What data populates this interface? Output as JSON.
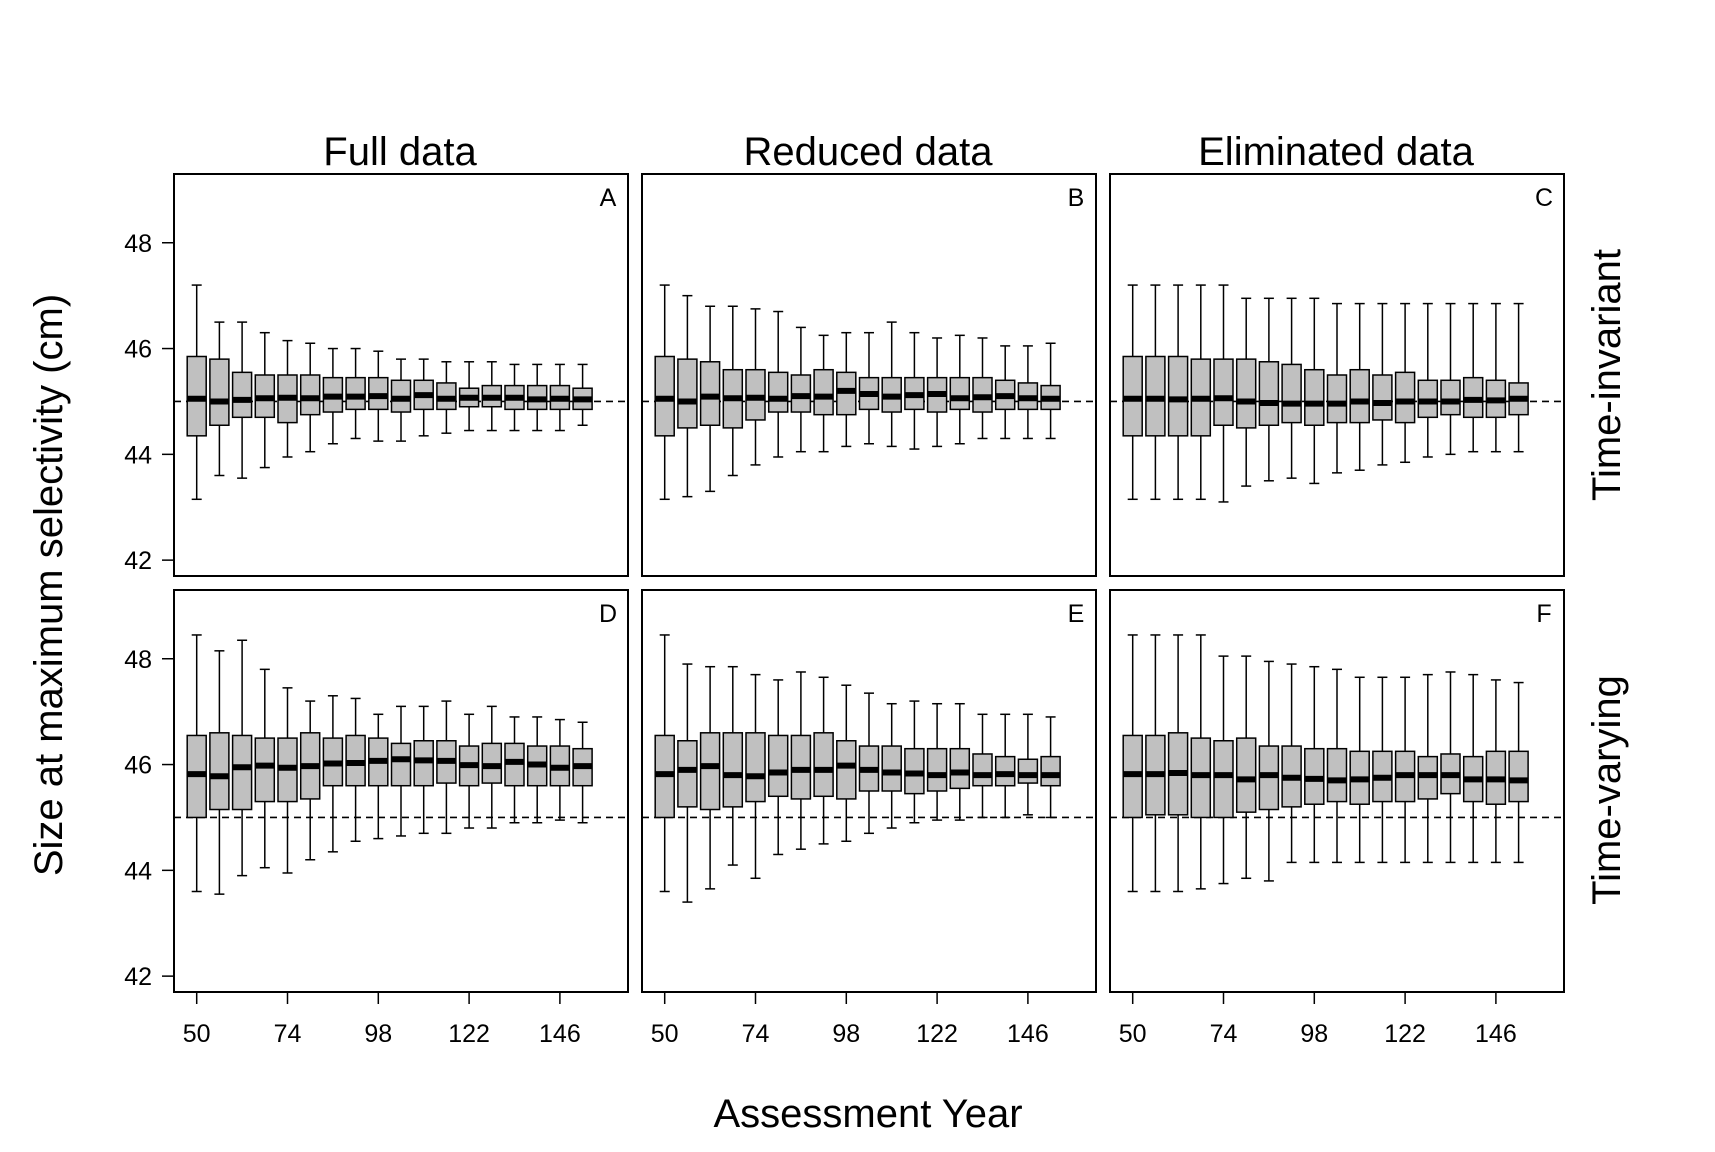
{
  "figure": {
    "col_titles": [
      "Full data",
      "Reduced data",
      "Eliminated data"
    ],
    "row_titles": [
      "Time-invariant",
      "Time-varying"
    ],
    "ylabel": "Size at maximum selectivity (cm)",
    "xlabel": "Assessment Year",
    "colors": {
      "box_fill": "#c0c0c0",
      "stroke": "#000000"
    }
  },
  "chart_data": [
    {
      "type": "boxplot",
      "panel": "A",
      "column": "Full data",
      "row": "Time-invariant",
      "x_ticks": [
        50,
        74,
        98,
        122,
        146
      ],
      "y_ticks": [
        42,
        44,
        46,
        48
      ],
      "ylim": [
        41.7,
        49.3
      ],
      "reference_line": 45,
      "x": [
        50,
        56,
        62,
        68,
        74,
        80,
        86,
        92,
        98,
        104,
        110,
        116,
        122,
        128,
        134,
        140,
        146,
        152
      ],
      "whisker_low": [
        43.15,
        43.6,
        43.55,
        43.75,
        43.95,
        44.05,
        44.2,
        44.3,
        44.25,
        44.25,
        44.35,
        44.4,
        44.45,
        44.45,
        44.45,
        44.45,
        44.45,
        44.55
      ],
      "q1": [
        44.35,
        44.55,
        44.7,
        44.7,
        44.6,
        44.75,
        44.8,
        44.85,
        44.85,
        44.8,
        44.85,
        44.85,
        44.9,
        44.9,
        44.85,
        44.85,
        44.85,
        44.85
      ],
      "median": [
        45.05,
        45.0,
        45.03,
        45.06,
        45.07,
        45.06,
        45.09,
        45.09,
        45.1,
        45.05,
        45.12,
        45.05,
        45.07,
        45.07,
        45.07,
        45.04,
        45.05,
        45.04
      ],
      "q3": [
        45.85,
        45.8,
        45.55,
        45.5,
        45.5,
        45.5,
        45.45,
        45.45,
        45.45,
        45.4,
        45.4,
        45.35,
        45.25,
        45.3,
        45.3,
        45.3,
        45.3,
        45.25
      ],
      "whisker_high": [
        47.2,
        46.5,
        46.5,
        46.3,
        46.15,
        46.1,
        46.0,
        46.0,
        45.95,
        45.8,
        45.8,
        45.75,
        45.75,
        45.75,
        45.7,
        45.7,
        45.7,
        45.7
      ]
    },
    {
      "type": "boxplot",
      "panel": "B",
      "column": "Reduced data",
      "row": "Time-invariant",
      "x_ticks": [
        50,
        74,
        98,
        122,
        146
      ],
      "y_ticks": [
        42,
        44,
        46,
        48
      ],
      "ylim": [
        41.7,
        49.3
      ],
      "reference_line": 45,
      "x": [
        50,
        56,
        62,
        68,
        74,
        80,
        86,
        92,
        98,
        104,
        110,
        116,
        122,
        128,
        134,
        140,
        146,
        152
      ],
      "whisker_low": [
        43.15,
        43.2,
        43.3,
        43.6,
        43.8,
        43.95,
        44.05,
        44.05,
        44.15,
        44.2,
        44.15,
        44.1,
        44.15,
        44.2,
        44.3,
        44.3,
        44.3,
        44.3
      ],
      "q1": [
        44.35,
        44.5,
        44.55,
        44.5,
        44.65,
        44.8,
        44.8,
        44.75,
        44.75,
        44.85,
        44.8,
        44.85,
        44.8,
        44.85,
        44.8,
        44.85,
        44.85,
        44.85
      ],
      "median": [
        45.05,
        45.0,
        45.09,
        45.06,
        45.07,
        45.05,
        45.1,
        45.09,
        45.2,
        45.14,
        45.09,
        45.12,
        45.14,
        45.06,
        45.08,
        45.1,
        45.06,
        45.05
      ],
      "q3": [
        45.85,
        45.8,
        45.75,
        45.6,
        45.6,
        45.55,
        45.5,
        45.6,
        45.55,
        45.45,
        45.45,
        45.45,
        45.45,
        45.45,
        45.45,
        45.4,
        45.35,
        45.3
      ],
      "whisker_high": [
        47.2,
        47.0,
        46.8,
        46.8,
        46.75,
        46.7,
        46.4,
        46.25,
        46.3,
        46.3,
        46.5,
        46.3,
        46.2,
        46.25,
        46.2,
        46.05,
        46.05,
        46.1
      ]
    },
    {
      "type": "boxplot",
      "panel": "C",
      "column": "Eliminated data",
      "row": "Time-invariant",
      "x_ticks": [
        50,
        74,
        98,
        122,
        146
      ],
      "y_ticks": [
        42,
        44,
        46,
        48
      ],
      "ylim": [
        41.7,
        49.3
      ],
      "reference_line": 45,
      "x": [
        50,
        56,
        62,
        68,
        74,
        80,
        86,
        92,
        98,
        104,
        110,
        116,
        122,
        128,
        134,
        140,
        146,
        152
      ],
      "whisker_low": [
        43.15,
        43.15,
        43.15,
        43.15,
        43.1,
        43.4,
        43.5,
        43.55,
        43.45,
        43.65,
        43.7,
        43.8,
        43.85,
        43.95,
        44.0,
        44.05,
        44.05,
        44.05
      ],
      "q1": [
        44.35,
        44.35,
        44.35,
        44.35,
        44.55,
        44.5,
        44.55,
        44.6,
        44.55,
        44.6,
        44.6,
        44.65,
        44.6,
        44.7,
        44.75,
        44.7,
        44.7,
        44.75
      ],
      "median": [
        45.05,
        45.05,
        45.04,
        45.05,
        45.06,
        45.0,
        44.97,
        44.96,
        44.96,
        44.96,
        45.0,
        44.97,
        45.0,
        45.0,
        45.0,
        45.03,
        45.02,
        45.05
      ],
      "q3": [
        45.85,
        45.85,
        45.85,
        45.8,
        45.8,
        45.8,
        45.75,
        45.7,
        45.6,
        45.5,
        45.6,
        45.5,
        45.55,
        45.4,
        45.4,
        45.45,
        45.4,
        45.35
      ],
      "whisker_high": [
        47.2,
        47.2,
        47.2,
        47.2,
        47.2,
        46.95,
        46.95,
        46.95,
        46.95,
        46.85,
        46.85,
        46.85,
        46.85,
        46.85,
        46.85,
        46.85,
        46.85,
        46.85
      ]
    },
    {
      "type": "boxplot",
      "panel": "D",
      "column": "Full data",
      "row": "Time-varying",
      "x_ticks": [
        50,
        74,
        98,
        122,
        146
      ],
      "y_ticks": [
        42,
        44,
        46,
        48
      ],
      "ylim": [
        41.7,
        49.3
      ],
      "reference_line": 45,
      "x": [
        50,
        56,
        62,
        68,
        74,
        80,
        86,
        92,
        98,
        104,
        110,
        116,
        122,
        128,
        134,
        140,
        146,
        152
      ],
      "whisker_low": [
        43.6,
        43.55,
        43.9,
        44.05,
        43.95,
        44.2,
        44.35,
        44.55,
        44.6,
        44.65,
        44.7,
        44.7,
        44.8,
        44.8,
        44.9,
        44.9,
        44.95,
        44.9
      ],
      "q1": [
        45.0,
        45.15,
        45.15,
        45.3,
        45.3,
        45.35,
        45.6,
        45.6,
        45.6,
        45.6,
        45.6,
        45.65,
        45.6,
        45.65,
        45.6,
        45.6,
        45.6,
        45.6
      ],
      "median": [
        45.82,
        45.78,
        45.95,
        45.98,
        45.94,
        45.97,
        46.02,
        46.03,
        46.07,
        46.1,
        46.08,
        46.07,
        45.99,
        45.97,
        46.05,
        46.0,
        45.94,
        45.97
      ],
      "q3": [
        46.55,
        46.6,
        46.55,
        46.5,
        46.5,
        46.6,
        46.5,
        46.55,
        46.5,
        46.4,
        46.45,
        46.45,
        46.35,
        46.4,
        46.4,
        46.35,
        46.35,
        46.3
      ],
      "whisker_high": [
        48.45,
        48.15,
        48.35,
        47.8,
        47.45,
        47.2,
        47.3,
        47.25,
        46.95,
        47.1,
        47.1,
        47.2,
        46.95,
        47.1,
        46.9,
        46.9,
        46.85,
        46.8
      ]
    },
    {
      "type": "boxplot",
      "panel": "E",
      "column": "Reduced data",
      "row": "Time-varying",
      "x_ticks": [
        50,
        74,
        98,
        122,
        146
      ],
      "y_ticks": [
        42,
        44,
        46,
        48
      ],
      "ylim": [
        41.7,
        49.3
      ],
      "reference_line": 45,
      "x": [
        50,
        56,
        62,
        68,
        74,
        80,
        86,
        92,
        98,
        104,
        110,
        116,
        122,
        128,
        134,
        140,
        146,
        152
      ],
      "whisker_low": [
        43.6,
        43.4,
        43.65,
        44.1,
        43.85,
        44.3,
        44.4,
        44.5,
        44.55,
        44.7,
        44.8,
        44.9,
        44.95,
        44.95,
        45.0,
        45.0,
        45.05,
        45.0
      ],
      "q1": [
        45.0,
        45.2,
        45.15,
        45.2,
        45.3,
        45.4,
        45.35,
        45.4,
        45.35,
        45.5,
        45.5,
        45.45,
        45.5,
        45.55,
        45.6,
        45.6,
        45.65,
        45.6
      ],
      "median": [
        45.82,
        45.9,
        45.97,
        45.8,
        45.78,
        45.85,
        45.9,
        45.9,
        45.98,
        45.9,
        45.85,
        45.83,
        45.8,
        45.85,
        45.8,
        45.82,
        45.8,
        45.8
      ],
      "q3": [
        46.55,
        46.45,
        46.6,
        46.6,
        46.6,
        46.55,
        46.55,
        46.6,
        46.45,
        46.35,
        46.35,
        46.3,
        46.3,
        46.3,
        46.2,
        46.15,
        46.1,
        46.15
      ],
      "whisker_high": [
        48.45,
        47.9,
        47.85,
        47.85,
        47.7,
        47.6,
        47.75,
        47.65,
        47.5,
        47.35,
        47.15,
        47.2,
        47.15,
        47.15,
        46.95,
        46.95,
        46.95,
        46.9
      ]
    },
    {
      "type": "boxplot",
      "panel": "F",
      "column": "Eliminated data",
      "row": "Time-varying",
      "x_ticks": [
        50,
        74,
        98,
        122,
        146
      ],
      "y_ticks": [
        42,
        44,
        46,
        48
      ],
      "ylim": [
        41.7,
        49.3
      ],
      "reference_line": 45,
      "x": [
        50,
        56,
        62,
        68,
        74,
        80,
        86,
        92,
        98,
        104,
        110,
        116,
        122,
        128,
        134,
        140,
        146,
        152
      ],
      "whisker_low": [
        43.6,
        43.6,
        43.6,
        43.65,
        43.75,
        43.85,
        43.8,
        44.15,
        44.15,
        44.15,
        44.15,
        44.15,
        44.15,
        44.15,
        44.15,
        44.15,
        44.15,
        44.15
      ],
      "q1": [
        45.0,
        45.05,
        45.05,
        45.0,
        45.0,
        45.1,
        45.15,
        45.2,
        45.25,
        45.3,
        45.25,
        45.3,
        45.3,
        45.35,
        45.45,
        45.3,
        45.25,
        45.3
      ],
      "median": [
        45.82,
        45.82,
        45.84,
        45.8,
        45.8,
        45.72,
        45.8,
        45.75,
        45.73,
        45.7,
        45.72,
        45.75,
        45.8,
        45.8,
        45.8,
        45.72,
        45.72,
        45.7
      ],
      "q3": [
        46.55,
        46.55,
        46.6,
        46.5,
        46.45,
        46.5,
        46.35,
        46.35,
        46.3,
        46.3,
        46.25,
        46.25,
        46.25,
        46.15,
        46.2,
        46.15,
        46.25,
        46.25
      ],
      "whisker_high": [
        48.45,
        48.45,
        48.45,
        48.45,
        48.05,
        48.05,
        47.95,
        47.9,
        47.85,
        47.8,
        47.65,
        47.65,
        47.65,
        47.7,
        47.75,
        47.7,
        47.6,
        47.55
      ]
    }
  ]
}
